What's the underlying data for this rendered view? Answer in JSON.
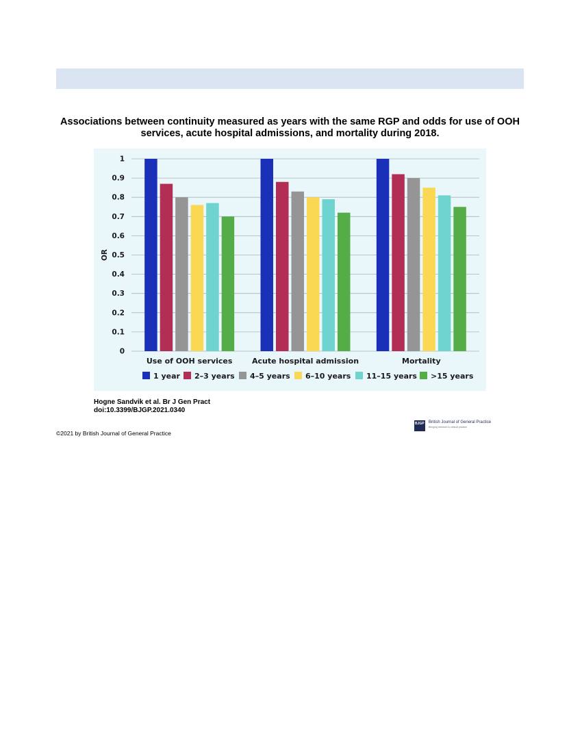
{
  "header": {
    "title": "Associations between continuity measured as years with the same RGP and odds for use of OOH services, acute hospital admissions, and mortality during 2018."
  },
  "chart_data": {
    "type": "bar",
    "categories": [
      "Use of OOH services",
      "Acute hospital admission",
      "Mortality"
    ],
    "series": [
      {
        "name": "1 year",
        "color": "#1b30b8",
        "values": [
          1.0,
          1.0,
          1.0
        ]
      },
      {
        "name": "2–3 years",
        "color": "#b32e55",
        "values": [
          0.87,
          0.88,
          0.92
        ]
      },
      {
        "name": "4–5 years",
        "color": "#959595",
        "values": [
          0.8,
          0.83,
          0.9
        ]
      },
      {
        "name": "6–10 years",
        "color": "#fbd853",
        "values": [
          0.76,
          0.8,
          0.85
        ]
      },
      {
        "name": "11–15 years",
        "color": "#6fd3cf",
        "values": [
          0.77,
          0.79,
          0.81
        ]
      },
      {
        "name": ">15 years",
        "color": "#55ad48",
        "values": [
          0.7,
          0.72,
          0.75
        ]
      }
    ],
    "yticks": [
      "0",
      "0.1",
      "0.2",
      "0.3",
      "0.4",
      "0.5",
      "0.6",
      "0.7",
      "0.8",
      "0.9",
      "1"
    ],
    "ylabel": "OR",
    "xlabel": "",
    "ylim": [
      0,
      1
    ],
    "grid": true,
    "legend": "bottom"
  },
  "footer": {
    "citation_line1": "Hogne Sandvik et al. Br J Gen Pract",
    "citation_line2": "doi:10.3399/BJGP.2021.0340",
    "copyright": "©2021 by British Journal of General Practice",
    "publisher_logo_text": "BJGP",
    "publisher_name": "British Journal of General Practice",
    "publisher_tagline": "Bringing research to clinical practice",
    "publisher_logo_icon": "bjgp-logo-icon"
  }
}
